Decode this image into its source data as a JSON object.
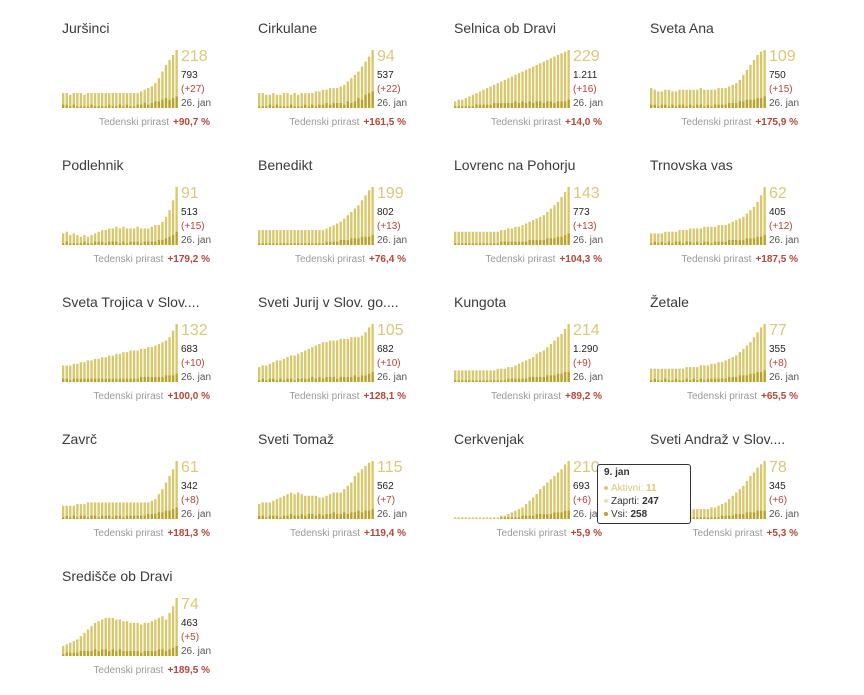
{
  "colors": {
    "all": "#d8c86a",
    "active": "#b7a22c",
    "closed": "#e9e0ab",
    "big_value": "#d9c97c",
    "negative": "#b5463a"
  },
  "chart_data": [
    {
      "type": "bar",
      "title": "Juršinci",
      "value": "218",
      "total": "793",
      "delta": "(+27)",
      "date": "26. jan",
      "growth_label": "Tedenski prirast",
      "growth": "+90,7 %",
      "all": [
        9,
        9,
        8,
        9,
        9,
        9,
        8,
        9,
        9,
        9,
        9,
        9,
        9,
        9,
        9,
        9,
        9,
        9,
        9,
        9,
        9,
        9,
        10,
        11,
        12,
        13,
        15,
        18,
        22,
        26,
        29,
        32,
        35
      ],
      "active": [
        2,
        2,
        1,
        2,
        1,
        1,
        1,
        1,
        2,
        1,
        1,
        1,
        1,
        2,
        1,
        1,
        2,
        1,
        2,
        1,
        1,
        2,
        2,
        3,
        2,
        3,
        4,
        4,
        5,
        6,
        5,
        6,
        7
      ]
    },
    {
      "type": "bar",
      "title": "Cirkulane",
      "value": "94",
      "total": "537",
      "delta": "(+22)",
      "date": "26. jan",
      "growth_label": "Tedenski prirast",
      "growth": "+161,5 %",
      "all": [
        9,
        9,
        8,
        8,
        9,
        8,
        8,
        9,
        9,
        8,
        9,
        8,
        9,
        9,
        9,
        9,
        10,
        10,
        11,
        11,
        12,
        12,
        12,
        13,
        14,
        16,
        18,
        20,
        22,
        25,
        28,
        31,
        35
      ],
      "active": [
        1,
        1,
        1,
        2,
        1,
        2,
        1,
        1,
        1,
        2,
        1,
        1,
        1,
        2,
        1,
        2,
        1,
        2,
        2,
        3,
        2,
        3,
        3,
        3,
        2,
        4,
        3,
        4,
        6,
        5,
        8,
        9,
        10
      ]
    },
    {
      "type": "bar",
      "title": "Selnica ob Dravi",
      "value": "229",
      "total": "1.211",
      "delta": "(+16)",
      "date": "26. jan",
      "growth_label": "Tedenski prirast",
      "growth": "+14,0 %",
      "all": [
        4,
        5,
        5,
        6,
        7,
        8,
        9,
        10,
        11,
        12,
        13,
        14,
        15,
        16,
        17,
        18,
        19,
        20,
        21,
        22,
        23,
        24,
        25,
        26,
        27,
        28,
        29,
        30,
        31,
        32,
        33,
        34,
        35
      ],
      "active": [
        1,
        1,
        1,
        1,
        1,
        1,
        2,
        2,
        2,
        2,
        2,
        3,
        3,
        3,
        3,
        3,
        3,
        4,
        3,
        4,
        3,
        4,
        3,
        4,
        4,
        3,
        4,
        4,
        3,
        4,
        4,
        4,
        5
      ]
    },
    {
      "type": "bar",
      "title": "Sveta Ana",
      "value": "109",
      "total": "750",
      "delta": "(+15)",
      "date": "26. jan",
      "growth_label": "Tedenski prirast",
      "growth": "+175,9 %",
      "all": [
        12,
        11,
        10,
        10,
        11,
        11,
        10,
        10,
        11,
        11,
        11,
        11,
        11,
        11,
        12,
        11,
        11,
        11,
        11,
        12,
        12,
        12,
        13,
        14,
        15,
        17,
        20,
        23,
        26,
        29,
        32,
        34,
        35
      ],
      "active": [
        2,
        2,
        1,
        2,
        2,
        1,
        2,
        1,
        2,
        2,
        1,
        2,
        1,
        2,
        2,
        1,
        2,
        1,
        2,
        2,
        2,
        2,
        3,
        3,
        3,
        4,
        4,
        5,
        5,
        5,
        6,
        6,
        7
      ]
    },
    {
      "type": "bar",
      "title": "Podlehnik",
      "value": "91",
      "total": "513",
      "delta": "(+15)",
      "date": "26. jan",
      "growth_label": "Tedenski prirast",
      "growth": "+179,2 %",
      "all": [
        7,
        8,
        6,
        7,
        6,
        5,
        6,
        5,
        6,
        7,
        8,
        9,
        9,
        10,
        10,
        11,
        10,
        11,
        10,
        10,
        10,
        11,
        10,
        10,
        10,
        11,
        12,
        12,
        14,
        17,
        21,
        27,
        35
      ],
      "active": [
        1,
        2,
        1,
        1,
        1,
        1,
        2,
        1,
        1,
        2,
        2,
        2,
        1,
        2,
        2,
        2,
        1,
        2,
        1,
        2,
        2,
        2,
        1,
        2,
        2,
        2,
        2,
        3,
        3,
        4,
        5,
        6,
        8
      ]
    },
    {
      "type": "bar",
      "title": "Benedikt",
      "value": "199",
      "total": "802",
      "delta": "(+13)",
      "date": "26. jan",
      "growth_label": "Tedenski prirast",
      "growth": "+76,4 %",
      "all": [
        9,
        9,
        9,
        9,
        9,
        9,
        9,
        9,
        9,
        9,
        9,
        9,
        9,
        9,
        9,
        9,
        9,
        9,
        9,
        10,
        11,
        12,
        13,
        14,
        16,
        18,
        20,
        22,
        24,
        27,
        30,
        33,
        35
      ],
      "active": [
        1,
        1,
        1,
        1,
        1,
        1,
        1,
        1,
        1,
        1,
        1,
        1,
        1,
        1,
        1,
        1,
        1,
        1,
        1,
        2,
        2,
        2,
        2,
        3,
        3,
        3,
        4,
        4,
        4,
        5,
        5,
        5,
        6
      ]
    },
    {
      "type": "bar",
      "title": "Lovrenc na Pohorju",
      "value": "143",
      "total": "773",
      "delta": "(+13)",
      "date": "26. jan",
      "growth_label": "Tedenski prirast",
      "growth": "+104,3 %",
      "all": [
        8,
        8,
        8,
        8,
        8,
        8,
        8,
        8,
        8,
        8,
        8,
        8,
        8,
        9,
        9,
        10,
        10,
        11,
        11,
        12,
        13,
        14,
        15,
        16,
        17,
        18,
        20,
        22,
        24,
        26,
        29,
        32,
        35
      ],
      "active": [
        1,
        1,
        1,
        1,
        1,
        1,
        1,
        1,
        1,
        1,
        1,
        1,
        1,
        2,
        2,
        2,
        2,
        2,
        2,
        2,
        2,
        3,
        3,
        3,
        3,
        3,
        4,
        4,
        4,
        5,
        5,
        6,
        7
      ]
    },
    {
      "type": "bar",
      "title": "Trnovska vas",
      "value": "62",
      "total": "405",
      "delta": "(+12)",
      "date": "26. jan",
      "growth_label": "Tedenski prirast",
      "growth": "+187,5 %",
      "all": [
        7,
        7,
        7,
        7,
        8,
        8,
        8,
        8,
        9,
        9,
        9,
        10,
        10,
        10,
        10,
        11,
        11,
        11,
        11,
        12,
        12,
        12,
        13,
        14,
        15,
        16,
        17,
        19,
        21,
        23,
        26,
        30,
        35
      ],
      "active": [
        1,
        2,
        1,
        2,
        1,
        2,
        1,
        2,
        2,
        1,
        2,
        2,
        1,
        2,
        1,
        2,
        2,
        1,
        2,
        2,
        2,
        2,
        3,
        3,
        3,
        3,
        3,
        4,
        4,
        4,
        5,
        5,
        6
      ]
    },
    {
      "type": "bar",
      "title": "Sveta Trojica v Slov....",
      "value": "132",
      "total": "683",
      "delta": "(+10)",
      "date": "26. jan",
      "growth_label": "Tedenski prirast",
      "growth": "+100,0 %",
      "all": [
        10,
        10,
        10,
        11,
        11,
        12,
        12,
        13,
        13,
        14,
        14,
        15,
        15,
        16,
        16,
        17,
        17,
        18,
        18,
        19,
        19,
        19,
        20,
        20,
        21,
        21,
        22,
        23,
        24,
        25,
        27,
        31,
        35
      ],
      "active": [
        2,
        2,
        1,
        2,
        2,
        2,
        2,
        2,
        2,
        2,
        2,
        2,
        2,
        2,
        2,
        2,
        2,
        2,
        2,
        2,
        2,
        2,
        3,
        3,
        3,
        3,
        3,
        3,
        3,
        4,
        4,
        4,
        5
      ]
    },
    {
      "type": "bar",
      "title": "Sveti Jurij v Slov. go....",
      "value": "105",
      "total": "682",
      "delta": "(+10)",
      "date": "26. jan",
      "growth_label": "Tedenski prirast",
      "growth": "+128,1 %",
      "all": [
        9,
        10,
        10,
        11,
        12,
        13,
        13,
        14,
        15,
        16,
        16,
        17,
        18,
        19,
        20,
        21,
        22,
        23,
        24,
        24,
        25,
        25,
        25,
        26,
        26,
        26,
        27,
        27,
        27,
        28,
        30,
        33,
        35
      ],
      "active": [
        1,
        2,
        1,
        2,
        2,
        1,
        2,
        1,
        2,
        2,
        1,
        2,
        2,
        2,
        2,
        3,
        2,
        3,
        2,
        3,
        3,
        3,
        2,
        3,
        3,
        3,
        3,
        4,
        3,
        4,
        4,
        5,
        6
      ]
    },
    {
      "type": "bar",
      "title": "Kungota",
      "value": "214",
      "total": "1.290",
      "delta": "(+9)",
      "date": "26. jan",
      "growth_label": "Tedenski prirast",
      "growth": "+89,2 %",
      "all": [
        7,
        7,
        7,
        7,
        7,
        7,
        7,
        7,
        7,
        7,
        7,
        7,
        8,
        8,
        8,
        9,
        9,
        10,
        11,
        12,
        13,
        14,
        15,
        17,
        18,
        19,
        21,
        23,
        25,
        27,
        29,
        32,
        35
      ],
      "active": [
        1,
        1,
        1,
        1,
        1,
        1,
        1,
        1,
        1,
        1,
        1,
        1,
        1,
        1,
        1,
        2,
        2,
        2,
        2,
        2,
        2,
        3,
        3,
        3,
        3,
        3,
        4,
        4,
        4,
        5,
        5,
        6,
        6
      ]
    },
    {
      "type": "bar",
      "title": "Žetale",
      "value": "77",
      "total": "355",
      "delta": "(+8)",
      "date": "26. jan",
      "growth_label": "Tedenski prirast",
      "growth": "+65,5 %",
      "all": [
        8,
        8,
        8,
        8,
        8,
        8,
        8,
        8,
        8,
        8,
        9,
        9,
        9,
        9,
        10,
        10,
        10,
        11,
        11,
        12,
        12,
        13,
        14,
        15,
        16,
        18,
        20,
        22,
        24,
        27,
        30,
        33,
        35
      ],
      "active": [
        1,
        2,
        1,
        1,
        2,
        1,
        1,
        2,
        1,
        1,
        2,
        1,
        2,
        1,
        2,
        1,
        2,
        2,
        2,
        2,
        2,
        2,
        3,
        3,
        3,
        4,
        4,
        4,
        5,
        5,
        6,
        6,
        7
      ]
    },
    {
      "type": "bar",
      "title": "Zavrč",
      "value": "61",
      "total": "342",
      "delta": "(+8)",
      "date": "26. jan",
      "growth_label": "Tedenski prirast",
      "growth": "+181,3 %",
      "all": [
        8,
        8,
        8,
        8,
        9,
        9,
        9,
        10,
        10,
        10,
        10,
        10,
        10,
        10,
        10,
        10,
        10,
        10,
        10,
        10,
        10,
        10,
        10,
        10,
        10,
        11,
        12,
        15,
        18,
        22,
        26,
        30,
        35
      ],
      "active": [
        1,
        2,
        1,
        2,
        1,
        2,
        2,
        1,
        2,
        2,
        1,
        2,
        2,
        2,
        1,
        2,
        2,
        1,
        2,
        2,
        2,
        2,
        2,
        2,
        3,
        3,
        3,
        4,
        4,
        5,
        5,
        6,
        7
      ]
    },
    {
      "type": "bar",
      "title": "Sveti Tomaž",
      "value": "115",
      "total": "562",
      "delta": "(+7)",
      "date": "26. jan",
      "growth_label": "Tedenski prirast",
      "growth": "+119,4 %",
      "all": [
        9,
        10,
        10,
        10,
        11,
        12,
        13,
        14,
        15,
        16,
        15,
        16,
        15,
        14,
        14,
        14,
        14,
        13,
        13,
        14,
        15,
        16,
        16,
        16,
        18,
        20,
        22,
        26,
        28,
        30,
        32,
        34,
        35
      ],
      "active": [
        2,
        2,
        1,
        2,
        2,
        2,
        1,
        2,
        2,
        3,
        2,
        2,
        3,
        2,
        3,
        3,
        2,
        3,
        2,
        3,
        3,
        4,
        3,
        3,
        4,
        3,
        4,
        4,
        5,
        4,
        5,
        5,
        6
      ]
    },
    {
      "type": "bar",
      "title": "Cerkvenjak",
      "value": "210",
      "total": "693",
      "delta": "(+6)",
      "date": "26. jan",
      "growth_label": "Tedenski prirast",
      "growth": "+5,9 %",
      "all": [
        1,
        1,
        1,
        1,
        1,
        1,
        1,
        1,
        1,
        1,
        1,
        1,
        1,
        2,
        2,
        3,
        4,
        5,
        6,
        7,
        9,
        11,
        13,
        15,
        18,
        20,
        22,
        24,
        26,
        28,
        30,
        33,
        35
      ],
      "active": [
        0,
        0,
        0,
        0,
        0,
        0,
        0,
        0,
        0,
        0,
        0,
        0,
        0,
        1,
        1,
        1,
        1,
        1,
        1,
        2,
        2,
        2,
        2,
        3,
        3,
        3,
        3,
        3,
        4,
        4,
        4,
        5,
        5
      ]
    },
    {
      "type": "bar",
      "title": "Sveti Andraž v Slov....",
      "value": "78",
      "total": "345",
      "delta": "(+6)",
      "date": "26. jan",
      "growth_label": "Tedenski prirast",
      "growth": "+5,3 %",
      "all": [
        6,
        6,
        6,
        6,
        6,
        6,
        6,
        6,
        6,
        6,
        6,
        6,
        6,
        6,
        6,
        6,
        6,
        7,
        7,
        8,
        9,
        10,
        12,
        14,
        16,
        18,
        20,
        23,
        26,
        28,
        31,
        33,
        35
      ],
      "active": [
        1,
        1,
        1,
        1,
        1,
        1,
        1,
        1,
        1,
        1,
        1,
        1,
        1,
        1,
        1,
        1,
        1,
        1,
        1,
        1,
        2,
        2,
        2,
        2,
        3,
        3,
        3,
        4,
        4,
        4,
        5,
        5,
        5
      ]
    },
    {
      "type": "bar",
      "title": "Središče ob Dravi",
      "value": "74",
      "total": "463",
      "delta": "(+5)",
      "date": "26. jan",
      "growth_label": "Tedenski prirast",
      "growth": "+189,5 %",
      "all": [
        6,
        7,
        8,
        9,
        10,
        12,
        14,
        16,
        18,
        20,
        21,
        22,
        23,
        23,
        23,
        22,
        22,
        21,
        21,
        20,
        20,
        20,
        19,
        20,
        20,
        21,
        22,
        23,
        24,
        22,
        26,
        30,
        35
      ],
      "active": [
        1,
        2,
        2,
        2,
        2,
        3,
        3,
        3,
        3,
        4,
        3,
        4,
        4,
        3,
        4,
        3,
        4,
        3,
        3,
        3,
        3,
        3,
        2,
        3,
        3,
        3,
        3,
        4,
        4,
        3,
        4,
        5,
        6
      ]
    }
  ],
  "tooltip": {
    "date": "9. jan",
    "active_label": "Aktivni:",
    "active_value": "11",
    "closed_label": "Zaprti:",
    "closed_value": "247",
    "all_label": "Vsi:",
    "all_value": "258"
  }
}
